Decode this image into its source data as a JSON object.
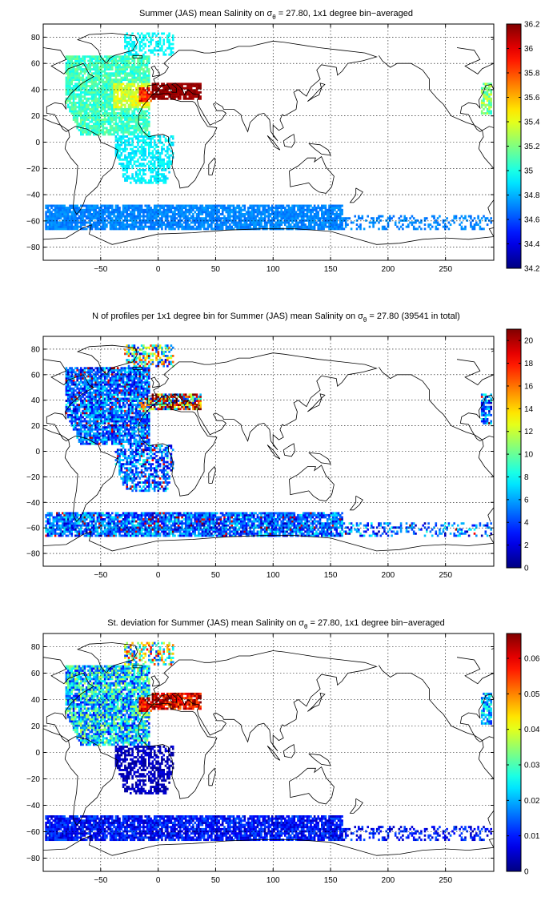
{
  "chart_data": [
    {
      "type": "heatmap",
      "title_main": "Summer (JAS) mean Salinity on",
      "title_sub_pre": "σ",
      "title_sub_index": "θ",
      "title_post": " = 27.80, 1x1 degree bin−averaged",
      "x_ticks": [
        "−50",
        "0",
        "50",
        "100",
        "150",
        "200",
        "250"
      ],
      "x_tick_values": [
        -50,
        0,
        50,
        100,
        150,
        200,
        250
      ],
      "y_ticks": [
        "80",
        "60",
        "40",
        "20",
        "0",
        "−20",
        "−40",
        "−60",
        "−80"
      ],
      "y_tick_values": [
        80,
        60,
        40,
        20,
        0,
        -20,
        -40,
        -60,
        -80
      ],
      "xlim": [
        -100,
        292
      ],
      "ylim": [
        -90,
        90
      ],
      "grid": true,
      "colorbar_ticks": [
        "36.2",
        "36",
        "35.8",
        "35.6",
        "35.4",
        "35.2",
        "35",
        "34.8",
        "34.6",
        "34.4",
        "34.2"
      ],
      "colorbar_values": [
        36.2,
        36,
        35.8,
        35.6,
        35.4,
        35.2,
        35,
        34.8,
        34.6,
        34.4,
        34.2
      ],
      "clim": [
        34.2,
        36.2
      ],
      "colormap": "jet"
    },
    {
      "type": "heatmap",
      "title_main": "N of profiles per 1x1 degree bin for Summer (JAS) mean Salinity on",
      "title_sub_pre": "σ",
      "title_sub_index": "θ",
      "title_post": " = 27.80 (39541 in total)",
      "x_ticks": [
        "−50",
        "0",
        "50",
        "100",
        "150",
        "200",
        "250"
      ],
      "x_tick_values": [
        -50,
        0,
        50,
        100,
        150,
        200,
        250
      ],
      "y_ticks": [
        "80",
        "60",
        "40",
        "20",
        "0",
        "−20",
        "−40",
        "−60",
        "−80"
      ],
      "y_tick_values": [
        80,
        60,
        40,
        20,
        0,
        -20,
        -40,
        -60,
        -80
      ],
      "xlim": [
        -100,
        292
      ],
      "ylim": [
        -90,
        90
      ],
      "grid": true,
      "colorbar_ticks": [
        "20",
        "18",
        "16",
        "14",
        "12",
        "10",
        "8",
        "6",
        "4",
        "2",
        "0"
      ],
      "colorbar_values": [
        20,
        18,
        16,
        14,
        12,
        10,
        8,
        6,
        4,
        2,
        0
      ],
      "clim": [
        0,
        21
      ],
      "colormap": "jet"
    },
    {
      "type": "heatmap",
      "title_main": "St. deviation for Summer (JAS) mean Salinity on",
      "title_sub_pre": "σ",
      "title_sub_index": "θ",
      "title_post": " = 27.80, 1x1 degree bin−averaged",
      "x_ticks": [
        "−50",
        "0",
        "50",
        "100",
        "150",
        "200",
        "250"
      ],
      "x_tick_values": [
        -50,
        0,
        50,
        100,
        150,
        200,
        250
      ],
      "y_ticks": [
        "80",
        "60",
        "40",
        "20",
        "0",
        "−20",
        "−40",
        "−60",
        "−80"
      ],
      "y_tick_values": [
        80,
        60,
        40,
        20,
        0,
        -20,
        -40,
        -60,
        -80
      ],
      "xlim": [
        -100,
        292
      ],
      "ylim": [
        -90,
        90
      ],
      "grid": true,
      "colorbar_ticks": [
        "0.06",
        "0.05",
        "0.04",
        "0.03",
        "0.02",
        "0.01",
        "0"
      ],
      "colorbar_values": [
        0.06,
        0.05,
        0.04,
        0.03,
        0.02,
        0.01,
        0
      ],
      "clim": [
        0,
        0.067
      ],
      "colormap": "jet"
    }
  ]
}
